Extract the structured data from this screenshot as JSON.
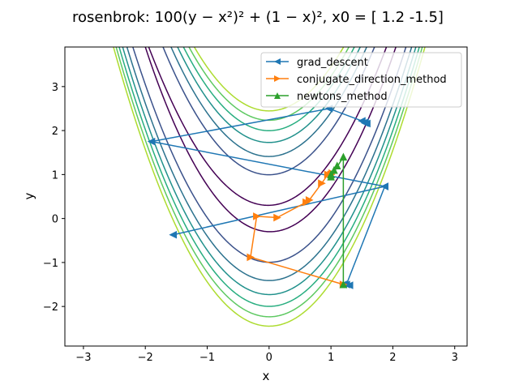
{
  "chart_data": {
    "type": "line",
    "title": "rosenbrok: 100(y − x²)² + (1 − x)², x0 = [ 1.2 -1.5]",
    "xlabel": "x",
    "ylabel": "y",
    "xlim": [
      -3.3,
      3.2
    ],
    "ylim": [
      -2.9,
      3.9
    ],
    "xticks": [
      -3,
      -2,
      -1,
      0,
      1,
      2,
      3
    ],
    "yticks": [
      -2,
      -1,
      0,
      1,
      2,
      3
    ],
    "grid": false,
    "legend_position": "top-right",
    "contour_colors": [
      "#440154",
      "#3b528b",
      "#2c728e",
      "#21918c",
      "#28ae80",
      "#5ec962",
      "#addc30"
    ],
    "contour_levels": [
      10,
      100,
      200,
      300,
      400,
      500,
      600
    ],
    "series": [
      {
        "name": "grad_descent",
        "color": "#1f77b4",
        "marker": "triangle-left",
        "x": [
          1.2,
          1.3,
          1.25,
          1.87,
          -1.55,
          1.87,
          -1.9,
          0.97,
          1.5,
          1.55,
          1.55,
          1.58
        ],
        "y": [
          -1.5,
          -1.52,
          -1.5,
          0.73,
          -0.37,
          0.73,
          1.75,
          2.5,
          2.22,
          2.19,
          2.17,
          2.16
        ]
      },
      {
        "name": "conjugate_direction_method",
        "color": "#ff7f0e",
        "marker": "triangle-right",
        "x": [
          1.2,
          -0.3,
          -0.2,
          0.13,
          0.6,
          0.65,
          0.85,
          0.95,
          1.02,
          1.0,
          1.0
        ],
        "y": [
          -1.5,
          -0.88,
          0.05,
          0.02,
          0.37,
          0.42,
          0.8,
          1.0,
          1.03,
          1.0,
          1.0
        ]
      },
      {
        "name": "newtons_method",
        "color": "#2ca02c",
        "marker": "triangle-up",
        "x": [
          1.2,
          1.2,
          1.0,
          1.0,
          1.1,
          1.05,
          1.0
        ],
        "y": [
          -1.5,
          1.4,
          0.95,
          1.0,
          1.2,
          1.1,
          1.0
        ]
      }
    ]
  }
}
